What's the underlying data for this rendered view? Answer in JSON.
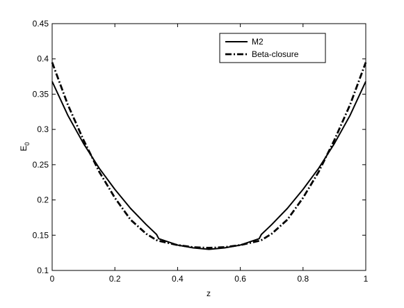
{
  "chart_data": {
    "type": "line",
    "xlabel": "z",
    "ylabel": "E0",
    "x": [
      0,
      0.05,
      0.1,
      0.15,
      0.2,
      0.25,
      0.3,
      0.333,
      0.34,
      0.4,
      0.45,
      0.5,
      0.55,
      0.6,
      0.66,
      0.667,
      0.7,
      0.75,
      0.8,
      0.85,
      0.9,
      0.95,
      1
    ],
    "series": [
      {
        "name": "M2",
        "color": "#000000",
        "style": "solid",
        "values": [
          0.368,
          0.32,
          0.28,
          0.245,
          0.215,
          0.188,
          0.165,
          0.151,
          0.145,
          0.136,
          0.132,
          0.13,
          0.132,
          0.136,
          0.145,
          0.151,
          0.165,
          0.188,
          0.215,
          0.245,
          0.28,
          0.32,
          0.368
        ]
      },
      {
        "name": "Beta-closure",
        "color": "#000000",
        "style": "dashdot",
        "values": [
          0.395,
          0.335,
          0.285,
          0.24,
          0.203,
          0.172,
          0.152,
          0.143,
          0.142,
          0.136,
          0.133,
          0.132,
          0.133,
          0.136,
          0.142,
          0.143,
          0.152,
          0.172,
          0.203,
          0.24,
          0.285,
          0.335,
          0.395
        ]
      }
    ],
    "xlim": [
      0,
      1
    ],
    "xticks": [
      0,
      0.2,
      0.4,
      0.6,
      0.8,
      1
    ],
    "ylim": [
      0.1,
      0.45
    ],
    "yticks": [
      0.1,
      0.15,
      0.2,
      0.25,
      0.3,
      0.35,
      0.4,
      0.45
    ],
    "legend": "northeast",
    "grid": false
  }
}
